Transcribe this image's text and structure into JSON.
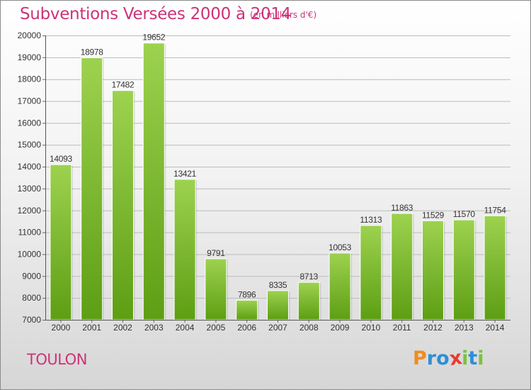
{
  "header": {
    "title": "Subventions Versées 2000 à 2014",
    "subtitle": "(en milliers d'€)"
  },
  "footer": {
    "commune": "TOULON",
    "logo_text": "Proxiti",
    "logo_letters": [
      "P",
      "r",
      "o",
      "x",
      "i",
      "t",
      "i"
    ],
    "logo_colors": [
      "#f08c1e",
      "#2e8fd6",
      "#2e8fd6",
      "#e53d2f",
      "#7cc23a",
      "#2e8fd6",
      "#7cc23a"
    ]
  },
  "colors": {
    "accent": "#cc3377",
    "bar_top": "#9dd24f",
    "bar_bottom": "#5d9e14",
    "grid": "#bbbbbb",
    "text": "#333333"
  },
  "chart_data": {
    "type": "bar",
    "title": "Subventions Versées 2000 à 2014",
    "subtitle": "(en milliers d'€)",
    "categories": [
      "2000",
      "2001",
      "2002",
      "2003",
      "2004",
      "2005",
      "2006",
      "2007",
      "2008",
      "2009",
      "2010",
      "2011",
      "2012",
      "2013",
      "2014"
    ],
    "values": [
      14093,
      18978,
      17482,
      19652,
      13421,
      9791,
      7896,
      8335,
      8713,
      10053,
      11313,
      11863,
      11529,
      11570,
      11754
    ],
    "ylim": [
      7000,
      20000
    ],
    "yticks": [
      7000,
      8000,
      9000,
      10000,
      11000,
      12000,
      13000,
      14000,
      15000,
      16000,
      17000,
      18000,
      19000,
      20000
    ],
    "grid": true,
    "data_labels": true
  }
}
